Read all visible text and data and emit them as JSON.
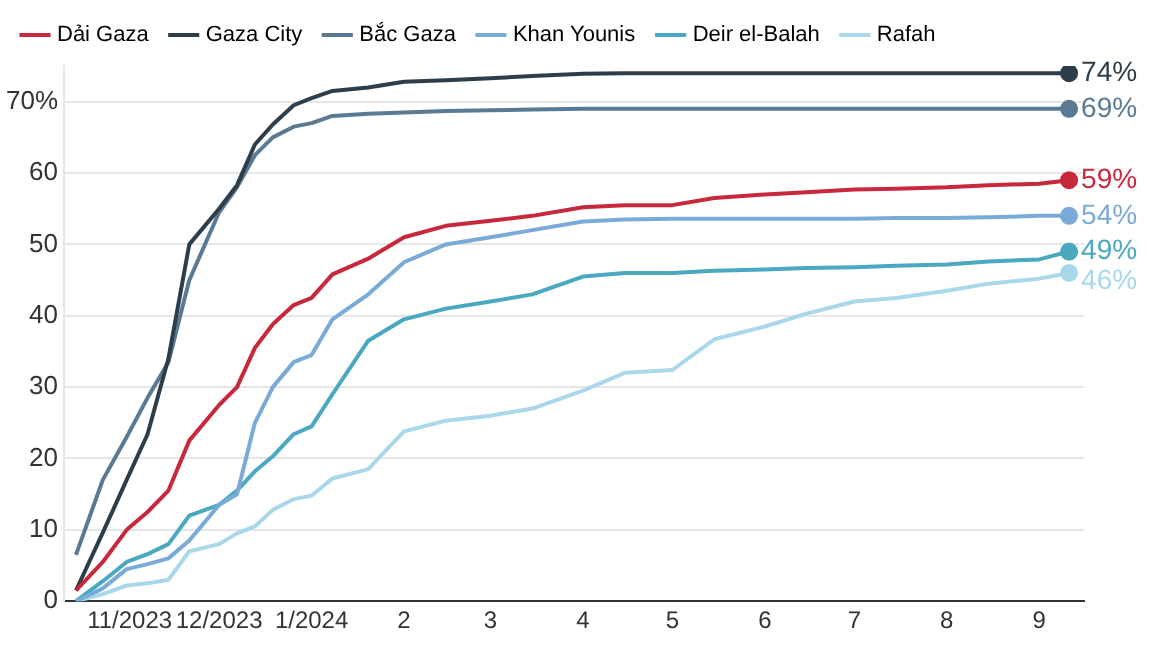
{
  "chart_data": {
    "type": "line",
    "x": [
      "2023-10-14",
      "2023-10-23",
      "2023-10-31",
      "2023-11-07",
      "2023-11-14",
      "2023-11-21",
      "2023-12-01",
      "2023-12-07",
      "2023-12-13",
      "2023-12-19",
      "2023-12-26",
      "2024-01-01",
      "2024-01-08",
      "2024-01-20",
      "2024-02-01",
      "2024-02-15",
      "2024-03-01",
      "2024-03-15",
      "2024-04-01",
      "2024-04-15",
      "2024-05-01",
      "2024-05-15",
      "2024-06-01",
      "2024-06-15",
      "2024-07-01",
      "2024-07-15",
      "2024-08-01",
      "2024-08-15",
      "2024-09-01",
      "2024-09-11"
    ],
    "series": [
      {
        "name": "Dải Gaza",
        "color": "#c8283c",
        "values": [
          1.5,
          5.5,
          10,
          12.5,
          15.5,
          22.5,
          27.5,
          30,
          35.5,
          38.8,
          41.5,
          42.5,
          45.8,
          48,
          51,
          52.6,
          53.3,
          54,
          55.2,
          55.5,
          55.5,
          56.5,
          57,
          57.3,
          57.7,
          57.8,
          58,
          58.3,
          58.5,
          59
        ],
        "value_labels": [
          null,
          null,
          null,
          null,
          null,
          null,
          null,
          null,
          null,
          null,
          null,
          null,
          null,
          null,
          null,
          null,
          null,
          null,
          null,
          null,
          null,
          null,
          null,
          null,
          null,
          null,
          null,
          null,
          null,
          "59%"
        ]
      },
      {
        "name": "Gaza City",
        "color": "#2d3e4a",
        "values": [
          1.5,
          9.6,
          17,
          23.4,
          34,
          50,
          55,
          58.3,
          64,
          66.8,
          69.5,
          70.5,
          71.5,
          72,
          72.8,
          73,
          73.3,
          73.6,
          73.9,
          74,
          74,
          74,
          74,
          74,
          74,
          74,
          74,
          74,
          74,
          74
        ],
        "value_labels": [
          null,
          null,
          null,
          null,
          null,
          null,
          null,
          null,
          null,
          null,
          null,
          null,
          null,
          null,
          null,
          null,
          null,
          null,
          null,
          null,
          null,
          null,
          null,
          null,
          null,
          null,
          null,
          null,
          null,
          "74%"
        ]
      },
      {
        "name": "Bắc Gaza",
        "color": "#5a7a94",
        "values": [
          6.5,
          17,
          23,
          28.5,
          33.5,
          45,
          54.5,
          58,
          62.5,
          65,
          66.5,
          67,
          68,
          68.3,
          68.5,
          68.7,
          68.8,
          68.9,
          69,
          69,
          69,
          69,
          69,
          69,
          69,
          69,
          69,
          69,
          69,
          69
        ],
        "value_labels": [
          null,
          null,
          null,
          null,
          null,
          null,
          null,
          null,
          null,
          null,
          null,
          null,
          null,
          null,
          null,
          null,
          null,
          null,
          null,
          null,
          null,
          null,
          null,
          null,
          null,
          null,
          null,
          null,
          null,
          "69%"
        ]
      },
      {
        "name": "Khan Younis",
        "color": "#7aaad8",
        "values": [
          0,
          1.8,
          4.5,
          5.2,
          6,
          8.5,
          13.5,
          15,
          25,
          30,
          33.5,
          34.5,
          39.5,
          43,
          47.5,
          50,
          51,
          52,
          53.2,
          53.5,
          53.6,
          53.6,
          53.6,
          53.6,
          53.6,
          53.7,
          53.7,
          53.8,
          54,
          54
        ],
        "value_labels": [
          null,
          null,
          null,
          null,
          null,
          null,
          null,
          null,
          null,
          null,
          null,
          null,
          null,
          null,
          null,
          null,
          null,
          null,
          null,
          null,
          null,
          null,
          null,
          null,
          null,
          null,
          null,
          null,
          null,
          "54%"
        ]
      },
      {
        "name": "Deir el-Balah",
        "color": "#4aa8c0",
        "values": [
          0,
          2.8,
          5.5,
          6.6,
          8,
          12,
          13.5,
          15.5,
          18.2,
          20.3,
          23.4,
          24.5,
          29,
          36.5,
          39.5,
          41,
          42,
          43,
          45.5,
          46,
          46,
          46.3,
          46.5,
          46.7,
          46.8,
          47,
          47.2,
          47.6,
          47.9,
          49
        ],
        "value_labels": [
          null,
          null,
          null,
          null,
          null,
          null,
          null,
          null,
          null,
          null,
          null,
          null,
          null,
          null,
          null,
          null,
          null,
          null,
          null,
          null,
          null,
          null,
          null,
          null,
          null,
          null,
          null,
          null,
          null,
          "49%"
        ]
      },
      {
        "name": "Rafah",
        "color": "#a8d8ea",
        "values": [
          0,
          1,
          2.2,
          2.5,
          3,
          7,
          8,
          9.5,
          10.5,
          12.8,
          14.3,
          14.8,
          17.2,
          18.5,
          23.8,
          25.3,
          26,
          27,
          29.5,
          32,
          32.4,
          36.7,
          38.5,
          40.3,
          42,
          42.5,
          43.5,
          44.5,
          45.2,
          46
        ],
        "value_labels": [
          null,
          null,
          null,
          null,
          null,
          null,
          null,
          null,
          null,
          null,
          null,
          null,
          null,
          null,
          null,
          null,
          null,
          null,
          null,
          null,
          null,
          null,
          null,
          null,
          null,
          null,
          null,
          null,
          null,
          "46%"
        ]
      }
    ],
    "xlim": [
      "2023-10-10",
      "2024-09-16"
    ],
    "xticks": [
      {
        "value": "2023-11-01",
        "label": "11/2023"
      },
      {
        "value": "2023-12-01",
        "label": "12/2023"
      },
      {
        "value": "2024-01-01",
        "label": "1/2024"
      },
      {
        "value": "2024-02-01",
        "label": "2"
      },
      {
        "value": "2024-03-01",
        "label": "3"
      },
      {
        "value": "2024-04-01",
        "label": "4"
      },
      {
        "value": "2024-05-01",
        "label": "5"
      },
      {
        "value": "2024-06-01",
        "label": "6"
      },
      {
        "value": "2024-07-01",
        "label": "7"
      },
      {
        "value": "2024-08-01",
        "label": "8"
      },
      {
        "value": "2024-09-01",
        "label": "9"
      }
    ],
    "ylim": [
      0,
      75
    ],
    "yticks": [
      0,
      10,
      20,
      30,
      40,
      50,
      60,
      {
        "value": 70,
        "label": "70%"
      }
    ],
    "grid": "y",
    "legend": "top",
    "line_style": "solid"
  }
}
